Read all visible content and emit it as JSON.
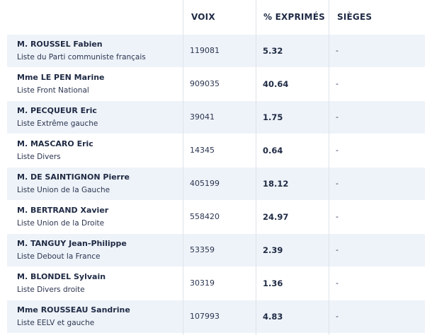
{
  "headers": {
    "votes": "VOIX",
    "percent": "% EXPRIMÉS",
    "seats": "SIÈGES"
  },
  "rows": [
    {
      "name": "M. ROUSSEL Fabien",
      "list": "Liste du Parti communiste français",
      "votes": "119081",
      "percent": "5.32",
      "seats": "-"
    },
    {
      "name": "Mme LE PEN Marine",
      "list": "Liste Front National",
      "votes": "909035",
      "percent": "40.64",
      "seats": "-"
    },
    {
      "name": "M. PECQUEUR Eric",
      "list": "Liste Extrême gauche",
      "votes": "39041",
      "percent": "1.75",
      "seats": "-"
    },
    {
      "name": "M. MASCARO Eric",
      "list": "Liste Divers",
      "votes": "14345",
      "percent": "0.64",
      "seats": "-"
    },
    {
      "name": "M. DE SAINTIGNON Pierre",
      "list": "Liste Union de la Gauche",
      "votes": "405199",
      "percent": "18.12",
      "seats": "-"
    },
    {
      "name": "M. BERTRAND Xavier",
      "list": "Liste Union de la Droite",
      "votes": "558420",
      "percent": "24.97",
      "seats": "-"
    },
    {
      "name": "M. TANGUY Jean-Philippe",
      "list": "Liste Debout la France",
      "votes": "53359",
      "percent": "2.39",
      "seats": "-"
    },
    {
      "name": "M. BLONDEL Sylvain",
      "list": "Liste Divers droite",
      "votes": "30319",
      "percent": "1.36",
      "seats": "-"
    },
    {
      "name": "Mme ROUSSEAU Sandrine",
      "list": "Liste EELV et gauche",
      "votes": "107993",
      "percent": "4.83",
      "seats": "-"
    }
  ]
}
